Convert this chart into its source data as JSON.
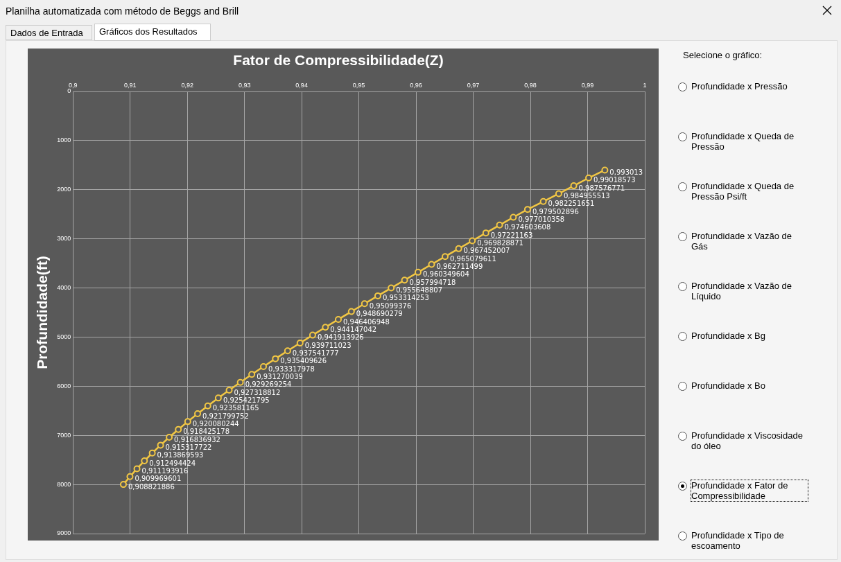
{
  "chart_data": {
    "type": "line",
    "title": "Fator de Compressibilidade(Z)",
    "ylabel": "Profundidade(ft)",
    "x": [
      0.993013,
      0.99018573,
      0.987576771,
      0.984955513,
      0.982251651,
      0.979502896,
      0.977010358,
      0.974603608,
      0.97221163,
      0.969828871,
      0.967452007,
      0.965079611,
      0.962711499,
      0.960349604,
      0.957994718,
      0.955648807,
      0.953314253,
      0.95099376,
      0.948690279,
      0.946406948,
      0.944147042,
      0.941913926,
      0.939711023,
      0.937541777,
      0.935409626,
      0.933317978,
      0.931270039,
      0.929269254,
      0.927318812,
      0.925421795,
      0.923581165,
      0.921799752,
      0.920080244,
      0.918425178,
      0.916836932,
      0.915317722,
      0.913869593,
      0.912494424,
      0.911193916,
      0.909969601,
      0.908821886
    ],
    "values": [
      1600,
      1760,
      1920,
      2080,
      2240,
      2400,
      2560,
      2720,
      2880,
      3040,
      3200,
      3360,
      3520,
      3680,
      3840,
      4000,
      4160,
      4320,
      4480,
      4640,
      4800,
      4960,
      5120,
      5280,
      5440,
      5600,
      5760,
      5920,
      6080,
      6240,
      6400,
      6560,
      6720,
      6880,
      7040,
      7200,
      7360,
      7520,
      7680,
      7840,
      8000
    ],
    "color": "#f2c744",
    "marker": "circle",
    "line_style": "solid",
    "grid": true,
    "legend": false,
    "xlim": [
      0.9,
      1
    ],
    "xticks": [
      {
        "value": 0.9,
        "label": "0,9"
      },
      {
        "value": 0.91,
        "label": "0,91"
      },
      {
        "value": 0.92,
        "label": "0,92"
      },
      {
        "value": 0.93,
        "label": "0,93"
      },
      {
        "value": 0.94,
        "label": "0,94"
      },
      {
        "value": 0.95,
        "label": "0,95"
      },
      {
        "value": 0.96,
        "label": "0,96"
      },
      {
        "value": 0.97,
        "label": "0,97"
      },
      {
        "value": 0.98,
        "label": "0,98"
      },
      {
        "value": 0.99,
        "label": "0,99"
      },
      {
        "value": 1,
        "label": "1"
      }
    ],
    "ylim": [
      9000,
      0
    ],
    "yticks": [
      0,
      1000,
      2000,
      3000,
      4000,
      5000,
      6000,
      7000,
      8000,
      9000
    ],
    "annotations": [
      "Planilha automatizada com método de Beggs and Brill",
      "Dados de Entrada",
      "Gráficos dos Resultados",
      "Selecione o gráfico:",
      "Profundidade x Pressão",
      "Profundidade x Queda de Pressão",
      "Profundidade x Queda de Pressão Psi/ft",
      "Profundidade x Vazão de Gás",
      "Profundidade x Vazão de Líquido",
      "Profundidade x Bg",
      "Profundidade x Bo",
      "Profundidade x Viscosidade do óleo",
      "Profundidade x Fator de Compressibilidade",
      "Profundidade x Tipo de escoamento",
      {
        "text": "0,993013",
        "x": 0.993013,
        "y": 1600
      },
      {
        "text": "0,99018573",
        "x": 0.99018573,
        "y": 1760
      },
      {
        "text": "0,987576771",
        "x": 0.987576771,
        "y": 1920
      },
      {
        "text": "0,984955513",
        "x": 0.984955513,
        "y": 2080
      },
      {
        "text": "0,982251651",
        "x": 0.982251651,
        "y": 2240
      },
      {
        "text": "0,979502896",
        "x": 0.979502896,
        "y": 2400
      },
      {
        "text": "0,977010358",
        "x": 0.977010358,
        "y": 2560
      },
      {
        "text": "0,974603608",
        "x": 0.974603608,
        "y": 2720
      },
      {
        "text": "0,97221163",
        "x": 0.97221163,
        "y": 2880
      },
      {
        "text": "0,969828871",
        "x": 0.969828871,
        "y": 3040
      },
      {
        "text": "0,967452007",
        "x": 0.967452007,
        "y": 3200
      },
      {
        "text": "0,965079611",
        "x": 0.965079611,
        "y": 3360
      },
      {
        "text": "0,962711499",
        "x": 0.962711499,
        "y": 3520
      },
      {
        "text": "0,960349604",
        "x": 0.960349604,
        "y": 3680
      },
      {
        "text": "0,957994718",
        "x": 0.957994718,
        "y": 3840
      },
      {
        "text": "0,955648807",
        "x": 0.955648807,
        "y": 4000
      },
      {
        "text": "0,953314253",
        "x": 0.953314253,
        "y": 4160
      },
      {
        "text": "0,95099376",
        "x": 0.95099376,
        "y": 4320
      },
      {
        "text": "0,948690279",
        "x": 0.948690279,
        "y": 4480
      },
      {
        "text": "0,946406948",
        "x": 0.946406948,
        "y": 4640
      },
      {
        "text": "0,944147042",
        "x": 0.944147042,
        "y": 4800
      },
      {
        "text": "0,941913926",
        "x": 0.941913926,
        "y": 4960
      },
      {
        "text": "0,939711023",
        "x": 0.939711023,
        "y": 5120
      },
      {
        "text": "0,937541777",
        "x": 0.937541777,
        "y": 5280
      },
      {
        "text": "0,935409626",
        "x": 0.935409626,
        "y": 5440
      },
      {
        "text": "0,933317978",
        "x": 0.933317978,
        "y": 5600
      },
      {
        "text": "0,931270039",
        "x": 0.931270039,
        "y": 5760
      },
      {
        "text": "0,929269254",
        "x": 0.929269254,
        "y": 5920
      },
      {
        "text": "0,927318812",
        "x": 0.927318812,
        "y": 6080
      },
      {
        "text": "0,925421795",
        "x": 0.925421795,
        "y": 6240
      },
      {
        "text": "0,923581165",
        "x": 0.923581165,
        "y": 6400
      },
      {
        "text": "0,921799752",
        "x": 0.921799752,
        "y": 6560
      },
      {
        "text": "0,920080244",
        "x": 0.920080244,
        "y": 6720
      },
      {
        "text": "0,918425178",
        "x": 0.918425178,
        "y": 6880
      },
      {
        "text": "0,916836932",
        "x": 0.916836932,
        "y": 7040
      },
      {
        "text": "0,915317722",
        "x": 0.915317722,
        "y": 7200
      },
      {
        "text": "0,913869593",
        "x": 0.913869593,
        "y": 7360
      },
      {
        "text": "0,912494424",
        "x": 0.912494424,
        "y": 7520
      },
      {
        "text": "0,911193916",
        "x": 0.911193916,
        "y": 7680
      },
      {
        "text": "0,909969601",
        "x": 0.909969601,
        "y": 7840
      },
      {
        "text": "0,908821886",
        "x": 0.908821886,
        "y": 8000
      }
    ]
  }
}
